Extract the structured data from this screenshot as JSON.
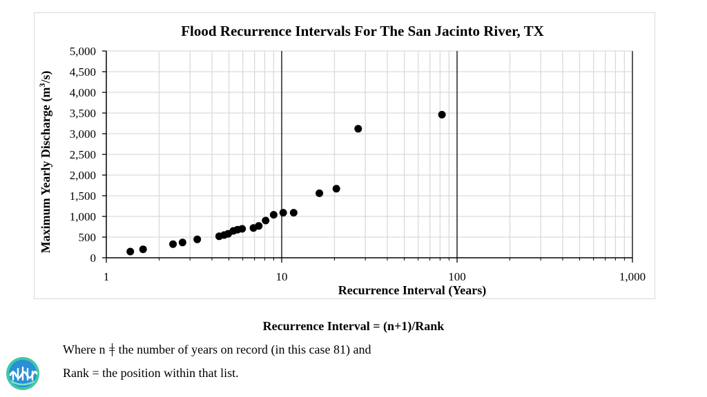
{
  "chart_data": {
    "type": "scatter",
    "title": "Flood Recurrence Intervals For The San Jacinto River, TX",
    "xlabel": "Recurrence Interval (Years)",
    "ylabel_parts": [
      "Maximum Yearly Discharge (m",
      "3",
      "/s)"
    ],
    "x_scale": "log",
    "xlim": [
      1,
      1000
    ],
    "ylim": [
      0,
      5000
    ],
    "x_ticks": [
      1,
      10,
      100,
      1000
    ],
    "x_tick_labels": [
      "1",
      "10",
      "100",
      "1,000"
    ],
    "y_ticks": [
      0,
      500,
      1000,
      1500,
      2000,
      2500,
      3000,
      3500,
      4000,
      4500,
      5000
    ],
    "y_tick_labels": [
      "0",
      "500",
      "1,000",
      "1,500",
      "2,000",
      "2,500",
      "3,000",
      "3,500",
      "4,000",
      "4,500",
      "5,000"
    ],
    "grid": true,
    "points": [
      {
        "x": 1.37,
        "y": 150
      },
      {
        "x": 1.62,
        "y": 205
      },
      {
        "x": 2.4,
        "y": 330
      },
      {
        "x": 2.72,
        "y": 370
      },
      {
        "x": 3.3,
        "y": 445
      },
      {
        "x": 4.4,
        "y": 520
      },
      {
        "x": 4.7,
        "y": 550
      },
      {
        "x": 4.95,
        "y": 580
      },
      {
        "x": 5.3,
        "y": 650
      },
      {
        "x": 5.6,
        "y": 680
      },
      {
        "x": 5.95,
        "y": 700
      },
      {
        "x": 6.9,
        "y": 720
      },
      {
        "x": 7.4,
        "y": 770
      },
      {
        "x": 8.1,
        "y": 900
      },
      {
        "x": 9.0,
        "y": 1040
      },
      {
        "x": 10.2,
        "y": 1090
      },
      {
        "x": 11.7,
        "y": 1090
      },
      {
        "x": 16.4,
        "y": 1560
      },
      {
        "x": 20.5,
        "y": 1670
      },
      {
        "x": 27.3,
        "y": 3120
      },
      {
        "x": 82,
        "y": 3460
      }
    ]
  },
  "formula": "Recurrence Interval = (n+1)/Rank",
  "notes": {
    "line1_before": "Where n ",
    "line1_after": " the number of years on record (in this case 81) and",
    "line2": "Rank = the position within that list."
  },
  "icons": {
    "equals_cursor": "equals-with-text-cursor",
    "logo": "wave-logo-icon"
  },
  "colors": {
    "grid_minor": "#d9d9d9",
    "grid_major": "#000000",
    "points": "#000000",
    "logo_outer": "#3ec9a7",
    "logo_inner": "#2a8fd6"
  }
}
